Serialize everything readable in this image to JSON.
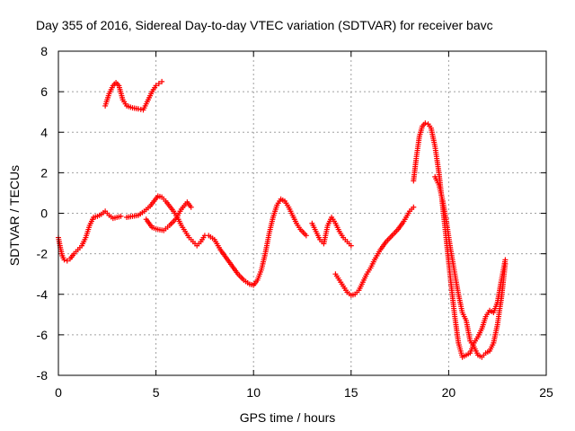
{
  "chart_data": {
    "type": "scatter",
    "title": "Day 355 of 2016, Sidereal Day-to-day VTEC variation (SDTVAR) for receiver bavc",
    "xlabel": "GPS time / hours",
    "ylabel": "SDTVAR / TECUs",
    "xlim": [
      0,
      25
    ],
    "ylim": [
      -8,
      8
    ],
    "xticks": [
      0,
      5,
      10,
      15,
      20,
      25
    ],
    "yticks": [
      -8,
      -6,
      -4,
      -2,
      0,
      2,
      4,
      6,
      8
    ],
    "grid": true,
    "marker": "+",
    "color": "#ff0000",
    "series": [
      {
        "x": [
          2.4,
          2.6,
          2.8,
          2.95,
          3.1,
          3.3,
          3.5,
          3.8,
          4.1,
          4.35,
          4.6,
          4.8,
          5.0,
          5.15,
          5.3
        ],
        "y": [
          5.3,
          5.9,
          6.3,
          6.45,
          6.3,
          5.6,
          5.3,
          5.2,
          5.15,
          5.1,
          5.6,
          6.0,
          6.3,
          6.4,
          6.5
        ]
      },
      {
        "x": [
          0.0,
          0.1,
          0.2,
          0.3,
          0.45,
          0.6,
          0.8,
          1.0,
          1.2,
          1.4,
          1.6,
          1.8,
          2.0,
          2.2,
          2.4,
          2.6,
          2.8,
          3.0,
          3.2
        ],
        "y": [
          -1.2,
          -1.7,
          -2.1,
          -2.3,
          -2.35,
          -2.25,
          -2.0,
          -1.8,
          -1.6,
          -1.2,
          -0.6,
          -0.2,
          -0.15,
          -0.05,
          0.1,
          -0.1,
          -0.25,
          -0.2,
          -0.15
        ]
      },
      {
        "x": [
          3.5,
          3.8,
          4.1,
          4.4,
          4.7,
          4.9,
          5.1,
          5.3,
          5.5,
          5.7,
          5.9,
          6.1,
          6.3,
          6.5,
          6.7,
          6.9,
          7.1,
          7.3,
          7.5,
          7.7,
          8.0,
          8.3,
          8.6,
          8.9,
          9.2,
          9.5,
          9.8,
          10.0,
          10.2,
          10.4,
          10.6,
          10.8,
          11.0,
          11.2,
          11.4,
          11.6,
          11.8,
          12.0,
          12.2,
          12.4,
          12.7
        ],
        "y": [
          -0.2,
          -0.15,
          -0.1,
          0.1,
          0.35,
          0.6,
          0.85,
          0.8,
          0.6,
          0.35,
          0.1,
          -0.2,
          -0.6,
          -0.9,
          -1.2,
          -1.4,
          -1.6,
          -1.4,
          -1.1,
          -1.1,
          -1.3,
          -1.8,
          -2.2,
          -2.6,
          -3.0,
          -3.3,
          -3.5,
          -3.55,
          -3.3,
          -2.8,
          -2.0,
          -1.0,
          -0.2,
          0.4,
          0.7,
          0.6,
          0.3,
          -0.1,
          -0.5,
          -0.8,
          -1.1
        ]
      },
      {
        "x": [
          4.5,
          4.8,
          5.1,
          5.4,
          5.7,
          6.0,
          6.3,
          6.6,
          6.8
        ],
        "y": [
          -0.3,
          -0.7,
          -0.8,
          -0.85,
          -0.6,
          -0.3,
          0.2,
          0.55,
          0.3
        ]
      },
      {
        "x": [
          13.0,
          13.2,
          13.4,
          13.6,
          13.8,
          14.0,
          14.2,
          14.4,
          14.6,
          14.8,
          15.0
        ],
        "y": [
          -0.5,
          -0.9,
          -1.3,
          -1.5,
          -0.6,
          -0.2,
          -0.5,
          -0.9,
          -1.2,
          -1.4,
          -1.6
        ]
      },
      {
        "x": [
          14.2,
          14.4,
          14.6,
          14.8,
          15.0,
          15.2,
          15.4,
          15.6,
          15.8,
          16.0,
          16.2,
          16.5,
          16.8,
          17.1,
          17.4,
          17.7,
          18.0,
          18.2
        ],
        "y": [
          -3.0,
          -3.3,
          -3.6,
          -3.9,
          -4.05,
          -4.0,
          -3.8,
          -3.4,
          -3.0,
          -2.7,
          -2.3,
          -1.8,
          -1.4,
          -1.1,
          -0.8,
          -0.4,
          0.1,
          0.3
        ]
      },
      {
        "x": [
          18.2,
          18.35,
          18.5,
          18.65,
          18.8,
          18.95,
          19.1,
          19.3,
          19.5,
          19.7,
          19.9,
          20.1,
          20.3,
          20.5,
          20.7,
          20.9,
          21.1,
          21.3,
          21.5,
          21.7,
          21.9,
          22.1,
          22.3,
          22.5,
          22.7,
          22.9
        ],
        "y": [
          1.6,
          2.8,
          3.8,
          4.3,
          4.45,
          4.4,
          4.2,
          3.3,
          2.0,
          0.3,
          -1.5,
          -3.3,
          -5.0,
          -6.4,
          -7.1,
          -7.0,
          -6.9,
          -6.4,
          -6.1,
          -5.7,
          -5.1,
          -4.8,
          -4.9,
          -4.4,
          -3.3,
          -2.3
        ]
      },
      {
        "x": [
          19.3,
          19.5,
          19.7,
          19.9,
          20.1,
          20.3,
          20.5,
          20.7,
          20.9,
          21.1,
          21.3,
          21.5,
          21.7,
          21.9,
          22.1,
          22.3,
          22.5,
          22.7,
          22.9
        ],
        "y": [
          1.8,
          1.4,
          0.6,
          -0.5,
          -1.8,
          -2.9,
          -4.0,
          -4.9,
          -5.3,
          -6.3,
          -6.6,
          -7.0,
          -7.1,
          -6.9,
          -6.8,
          -6.4,
          -5.5,
          -4.2,
          -2.5
        ]
      }
    ]
  }
}
